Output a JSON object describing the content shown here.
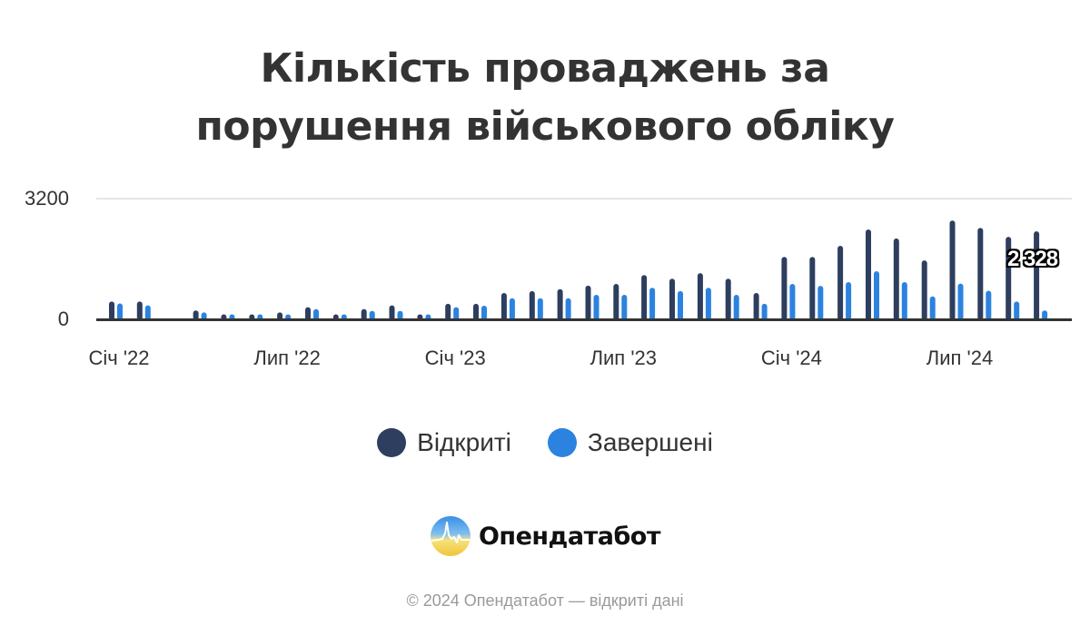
{
  "title": {
    "line1": "Кількість проваджень за",
    "line2": "порушення військового обліку"
  },
  "legend": [
    {
      "label": "Відкриті",
      "color": "#2d3e5e"
    },
    {
      "label": "Завершені",
      "color": "#2b83df"
    }
  ],
  "axis": {
    "y_ticks": [
      "3200",
      "0"
    ],
    "x_ticks": [
      {
        "label": "Січ '22",
        "index": 0
      },
      {
        "label": "Лип '22",
        "index": 6
      },
      {
        "label": "Січ '23",
        "index": 12
      },
      {
        "label": "Лип '23",
        "index": 18
      },
      {
        "label": "Січ '24",
        "index": 24
      },
      {
        "label": "Лип '24",
        "index": 30
      }
    ]
  },
  "annotation": {
    "label": "2 328",
    "series": "Відкриті",
    "category": "Жов '24"
  },
  "brand": {
    "name": "Опендатабот"
  },
  "footer": {
    "text": "© 2024 Опендатабот — відкриті дані"
  },
  "chart_data": {
    "type": "bar",
    "title": "Кількість проваджень за порушення військового обліку",
    "xlabel": "",
    "ylabel": "",
    "ylim": [
      0,
      3200
    ],
    "grid": true,
    "legend_position": "bottom",
    "categories": [
      "Січ '22",
      "Лют '22",
      "Бер '22",
      "Кві '22",
      "Тра '22",
      "Чер '22",
      "Лип '22",
      "Сер '22",
      "Вер '22",
      "Жов '22",
      "Лис '22",
      "Гру '22",
      "Січ '23",
      "Лют '23",
      "Бер '23",
      "Кві '23",
      "Тра '23",
      "Чер '23",
      "Лип '23",
      "Сер '23",
      "Вер '23",
      "Жов '23",
      "Лис '23",
      "Гру '23",
      "Січ '24",
      "Лют '24",
      "Бер '24",
      "Кві '24",
      "Тра '24",
      "Чер '24",
      "Лип '24",
      "Сер '24",
      "Вер '24",
      "Жов '24"
    ],
    "series": [
      {
        "name": "Відкриті",
        "color": "#2d3e5e",
        "values": [
          450,
          450,
          0,
          210,
          110,
          110,
          160,
          300,
          110,
          250,
          350,
          110,
          390,
          390,
          680,
          730,
          780,
          875,
          920,
          1160,
          1060,
          1210,
          1060,
          680,
          1640,
          1640,
          1940,
          2375,
          2135,
          1550,
          2615,
          2420,
          2180,
          2328
        ]
      },
      {
        "name": "Завершені",
        "color": "#2b83df",
        "values": [
          400,
          350,
          0,
          160,
          110,
          110,
          110,
          250,
          110,
          200,
          200,
          110,
          300,
          340,
          540,
          540,
          540,
          630,
          630,
          820,
          730,
          820,
          630,
          390,
          920,
          870,
          970,
          1260,
          970,
          590,
          930,
          740,
          450,
          210
        ]
      }
    ]
  }
}
